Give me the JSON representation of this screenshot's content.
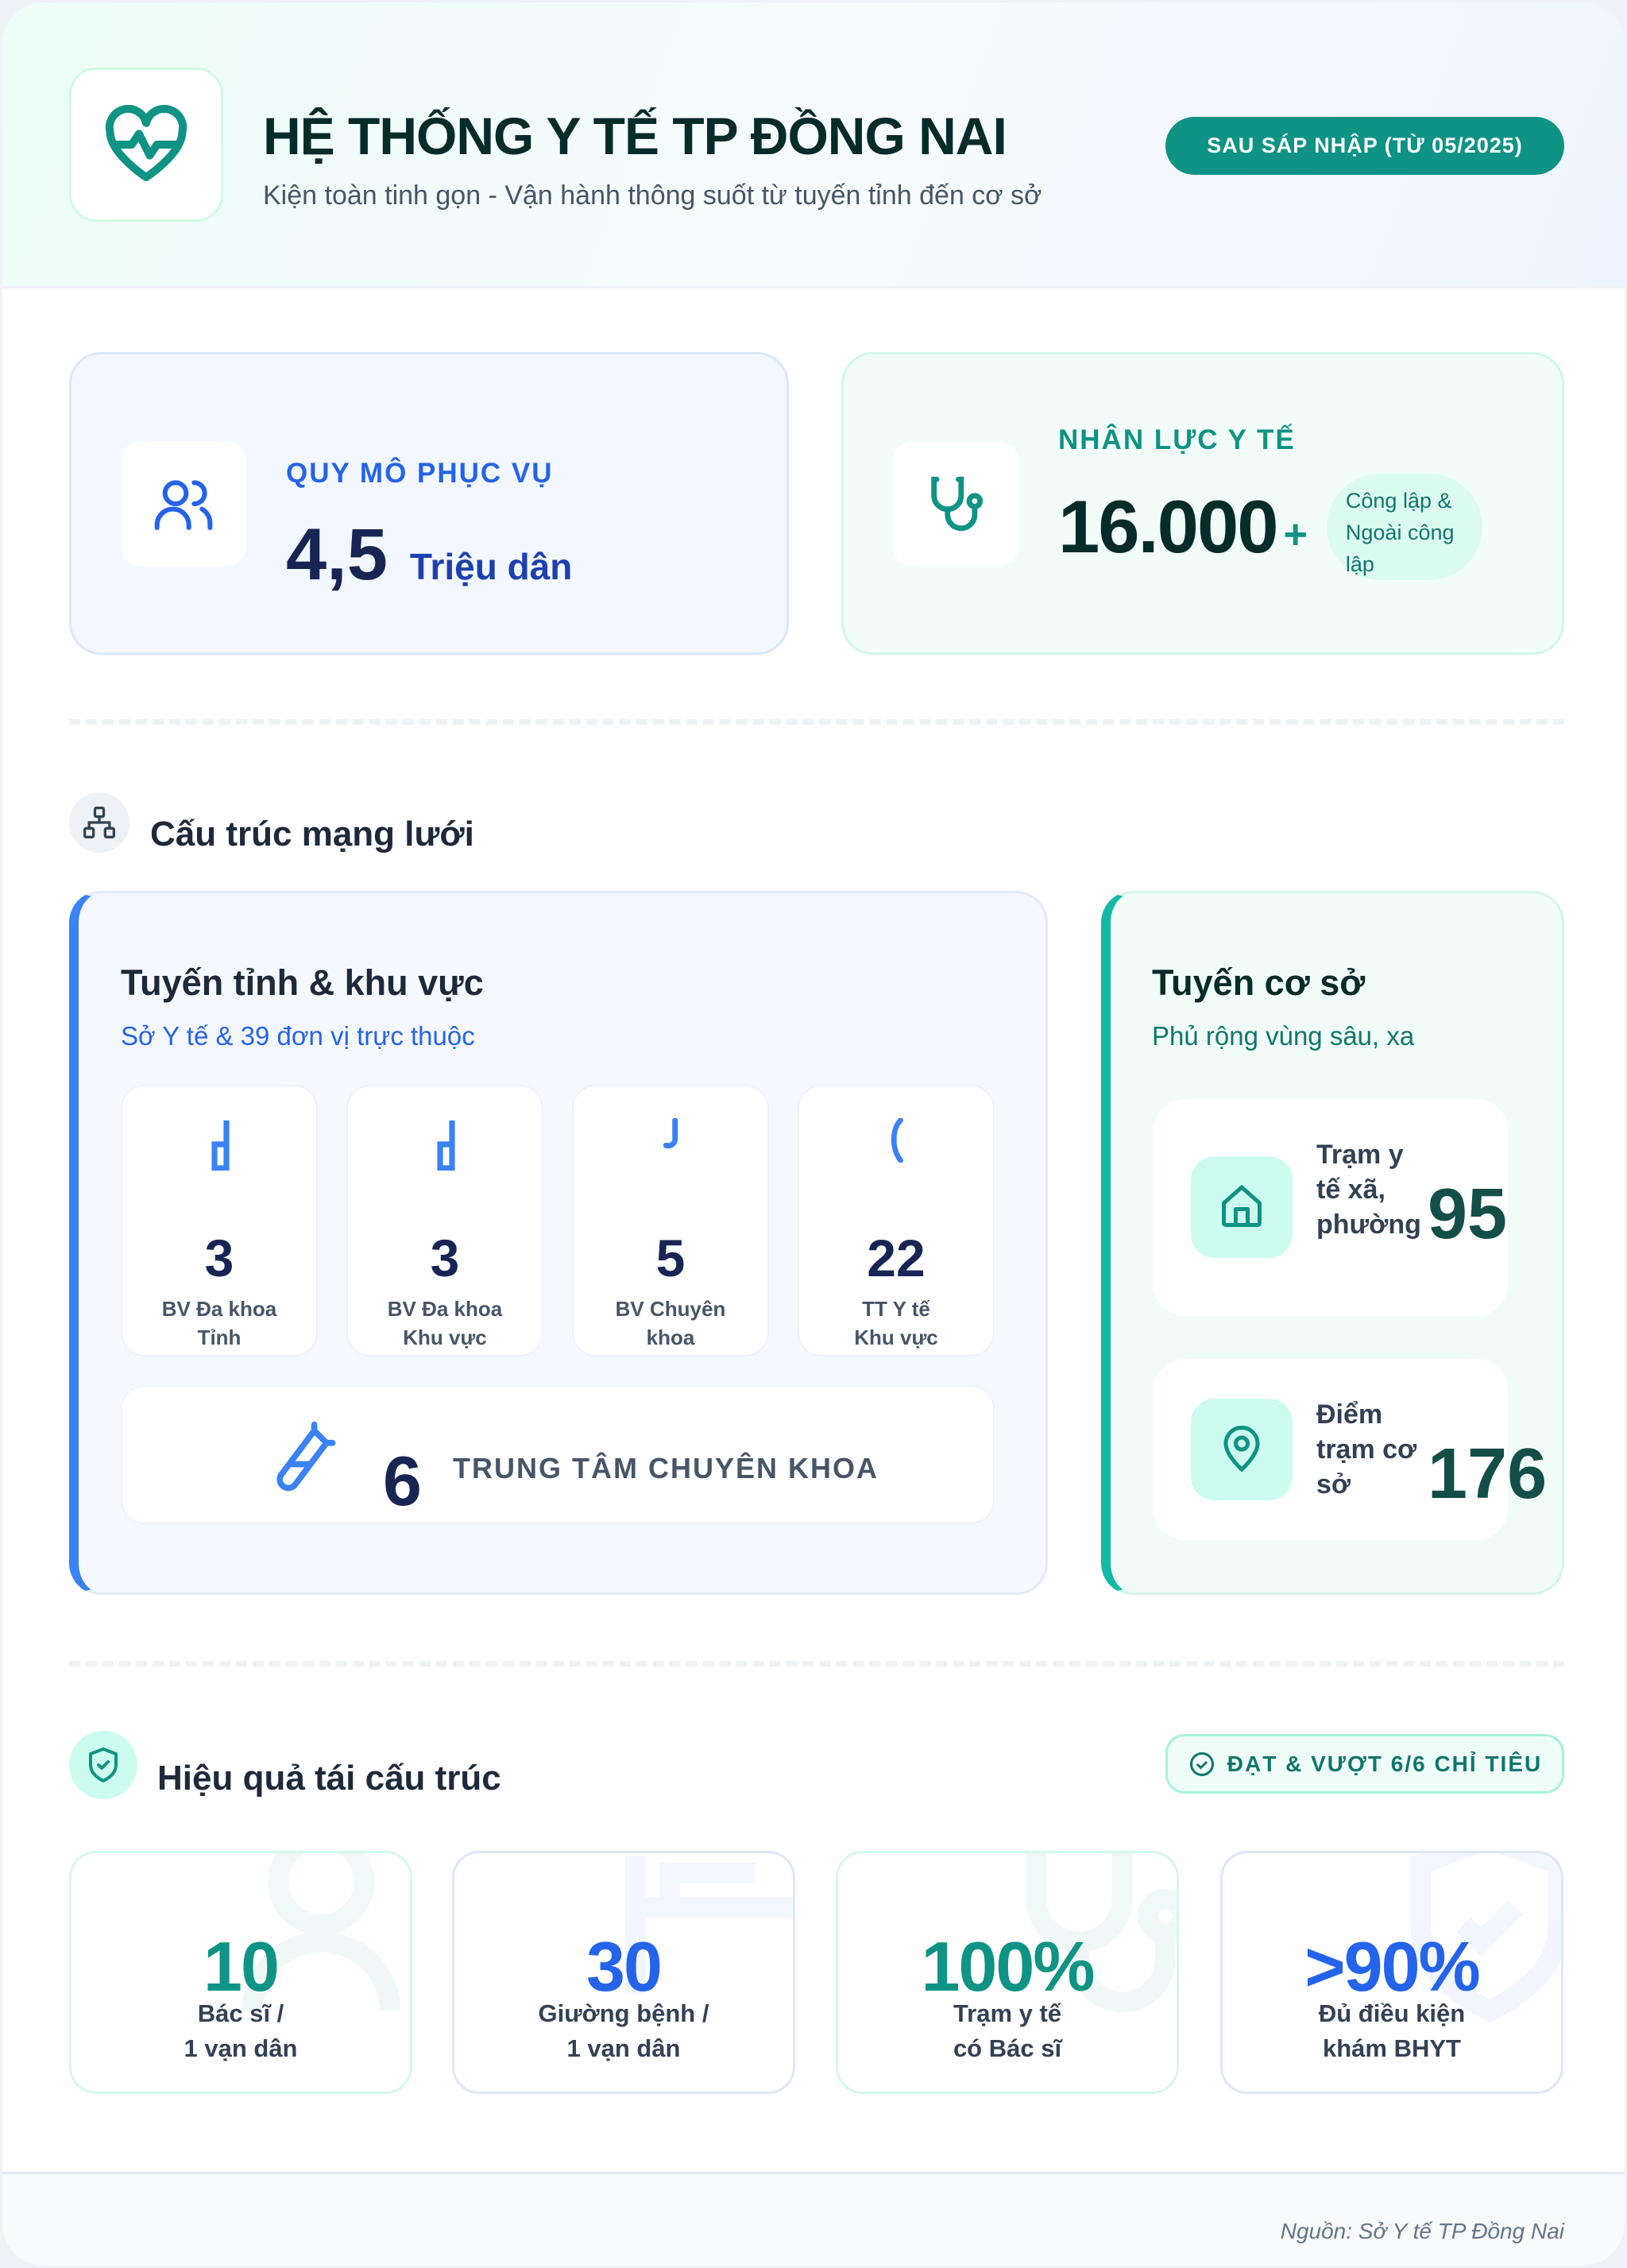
{
  "header": {
    "title": "HỆ THỐNG Y TẾ TP ĐỒNG NAI",
    "subtitle": "Kiện toàn tinh gọn - Vận hành thông suốt từ tuyến tỉnh đến cơ sở",
    "badge": "SAU SÁP NHẬP (TỪ 05/2025)",
    "icon": "heart-pulse-icon"
  },
  "stats": {
    "population": {
      "label": "QUY MÔ PHỤC VỤ",
      "value": "4,5",
      "unit": "Triệu dân",
      "icon": "users-icon"
    },
    "workforce": {
      "label": "NHÂN LỰC Y TẾ",
      "value": "16.000",
      "plus": "+",
      "note": "Công lập & Ngoài công lập",
      "icon": "stethoscope-icon"
    }
  },
  "network": {
    "title": "Cấu trúc mạng lưới",
    "icon": "sitemap-icon",
    "provincial": {
      "title": "Tuyến tỉnh & khu vực",
      "subtitle": "Sở Y tế & 39 đơn vị trực thuộc",
      "items": [
        {
          "value": "3",
          "label": "BV Đa khoa Tỉnh"
        },
        {
          "value": "3",
          "label": "BV Đa khoa Khu vực"
        },
        {
          "value": "5",
          "label": "BV Chuyên khoa"
        },
        {
          "value": "22",
          "label": "TT Y tế Khu vực"
        }
      ],
      "centers": {
        "value": "6",
        "label": "TRUNG TÂM CHUYÊN KHOA",
        "icon": "test-tube-icon"
      }
    },
    "grassroots": {
      "title": "Tuyến cơ sở",
      "subtitle": "Phủ rộng vùng sâu, xa",
      "items": [
        {
          "label": "Trạm y tế xã, phường",
          "value": "95",
          "icon": "home-icon"
        },
        {
          "label": "Điểm trạm cơ sở",
          "value": "176",
          "icon": "map-pin-icon"
        }
      ]
    }
  },
  "effectiveness": {
    "title": "Hiệu quả tái cấu trúc",
    "icon": "shield-check-icon",
    "badge": "ĐẠT & VƯỢT 6/6 CHỈ TIÊU",
    "items": [
      {
        "value": "10",
        "label1": "Bác sĩ /",
        "label2": "1 vạn dân",
        "color": "#0e9384"
      },
      {
        "value": "30",
        "label1": "Giường bệnh /",
        "label2": "1 vạn dân",
        "color": "#2563eb"
      },
      {
        "value": "100%",
        "label1": "Trạm y tế",
        "label2": "có Bác sĩ",
        "color": "#0e9384"
      },
      {
        "value": ">90%",
        "label1": "Đủ điều kiện",
        "label2": "khám BHYT",
        "color": "#2563eb"
      }
    ]
  },
  "footer": {
    "source": "Nguồn: Sở Y tế TP Đồng Nai"
  },
  "colors": {
    "teal": "#0e9384",
    "blue": "#2563eb",
    "navy": "#172554"
  }
}
